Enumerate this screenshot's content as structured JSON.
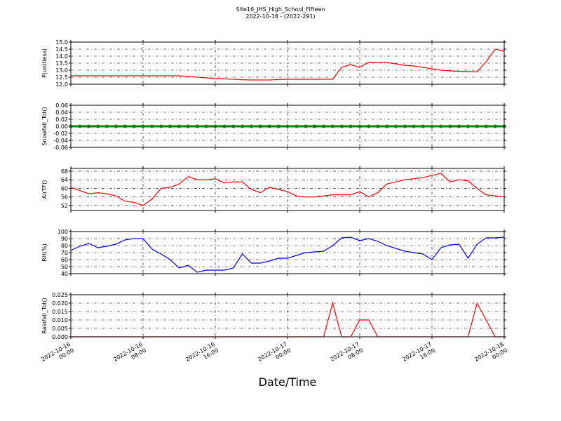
{
  "chart_data": [
    {
      "type": "line",
      "title": "Site16_JHS_High_School_Fifteen",
      "subtitle": "2022-10-18 - (2022-291)",
      "ylabel": "P(unitless)",
      "color": "#ff0000",
      "x": [
        "2022-10-16 00:00",
        "2022-10-16 01:00",
        "2022-10-16 02:00",
        "2022-10-16 03:00",
        "2022-10-16 04:00",
        "2022-10-16 05:00",
        "2022-10-16 06:00",
        "2022-10-16 07:00",
        "2022-10-16 08:00",
        "2022-10-16 09:00",
        "2022-10-16 10:00",
        "2022-10-16 11:00",
        "2022-10-16 12:00",
        "2022-10-16 13:00",
        "2022-10-16 14:00",
        "2022-10-16 15:00",
        "2022-10-16 16:00",
        "2022-10-16 17:00",
        "2022-10-16 18:00",
        "2022-10-16 19:00",
        "2022-10-16 20:00",
        "2022-10-16 21:00",
        "2022-10-16 22:00",
        "2022-10-16 23:00",
        "2022-10-17 00:00",
        "2022-10-17 01:00",
        "2022-10-17 02:00",
        "2022-10-17 03:00",
        "2022-10-17 04:00",
        "2022-10-17 05:00",
        "2022-10-17 06:00",
        "2022-10-17 07:00",
        "2022-10-17 08:00",
        "2022-10-17 09:00",
        "2022-10-17 10:00",
        "2022-10-17 11:00",
        "2022-10-17 12:00",
        "2022-10-17 13:00",
        "2022-10-17 14:00",
        "2022-10-17 15:00",
        "2022-10-17 16:00",
        "2022-10-17 17:00",
        "2022-10-17 18:00",
        "2022-10-17 19:00",
        "2022-10-17 20:00",
        "2022-10-17 21:00",
        "2022-10-17 22:00",
        "2022-10-17 23:00",
        "2022-10-18 00:00"
      ],
      "values": [
        12.6,
        12.6,
        12.6,
        12.6,
        12.6,
        12.6,
        12.6,
        12.6,
        12.6,
        12.6,
        12.6,
        12.6,
        12.6,
        12.55,
        12.5,
        12.45,
        12.4,
        12.38,
        12.35,
        12.32,
        12.3,
        12.3,
        12.3,
        12.33,
        12.35,
        12.35,
        12.35,
        12.35,
        12.35,
        12.35,
        13.2,
        13.4,
        13.2,
        13.55,
        13.55,
        13.55,
        13.45,
        13.35,
        13.3,
        13.2,
        13.1,
        13.0,
        12.95,
        12.92,
        12.9,
        12.88,
        13.6,
        14.5,
        14.35
      ],
      "xlim": [
        "2022-10-16 00:00",
        "2022-10-18 00:00"
      ],
      "xticks": [
        "2022-10-16 00:00",
        "2022-10-16 08:00",
        "2022-10-16 16:00",
        "2022-10-17 00:00",
        "2022-10-17 08:00",
        "2022-10-17 16:00",
        "2022-10-18 00:00"
      ],
      "ylim": [
        12.0,
        15.0
      ],
      "yticks": [
        {
          "value": 12,
          "label": "12.0"
        },
        12.5,
        {
          "value": 13,
          "label": "13.0"
        },
        13.5,
        {
          "value": 14,
          "label": "14.0"
        },
        14.5,
        {
          "value": 15,
          "label": "15.0"
        }
      ],
      "grid": true
    },
    {
      "type": "line",
      "ylabel": "Snowfall_Tot()",
      "color": "#008000",
      "marker": true,
      "x": [
        "2022-10-16 00:00",
        "2022-10-16 01:00",
        "2022-10-16 02:00",
        "2022-10-16 03:00",
        "2022-10-16 04:00",
        "2022-10-16 05:00",
        "2022-10-16 06:00",
        "2022-10-16 07:00",
        "2022-10-16 08:00",
        "2022-10-16 09:00",
        "2022-10-16 10:00",
        "2022-10-16 11:00",
        "2022-10-16 12:00",
        "2022-10-16 13:00",
        "2022-10-16 14:00",
        "2022-10-16 15:00",
        "2022-10-16 16:00",
        "2022-10-16 17:00",
        "2022-10-16 18:00",
        "2022-10-16 19:00",
        "2022-10-16 20:00",
        "2022-10-16 21:00",
        "2022-10-16 22:00",
        "2022-10-16 23:00",
        "2022-10-17 00:00",
        "2022-10-17 01:00",
        "2022-10-17 02:00",
        "2022-10-17 03:00",
        "2022-10-17 04:00",
        "2022-10-17 05:00",
        "2022-10-17 06:00",
        "2022-10-17 07:00",
        "2022-10-17 08:00",
        "2022-10-17 09:00",
        "2022-10-17 10:00",
        "2022-10-17 11:00",
        "2022-10-17 12:00",
        "2022-10-17 13:00",
        "2022-10-17 14:00",
        "2022-10-17 15:00",
        "2022-10-17 16:00",
        "2022-10-17 17:00",
        "2022-10-17 18:00",
        "2022-10-17 19:00",
        "2022-10-17 20:00",
        "2022-10-17 21:00",
        "2022-10-17 22:00",
        "2022-10-17 23:00",
        "2022-10-18 00:00"
      ],
      "values": [
        0,
        0,
        0,
        0,
        0,
        0,
        0,
        0,
        0,
        0,
        0,
        0,
        0,
        0,
        0,
        0,
        0,
        0,
        0,
        0,
        0,
        0,
        0,
        0,
        0,
        0,
        0,
        0,
        0,
        0,
        0,
        0,
        0,
        0,
        0,
        0,
        0,
        0,
        0,
        0,
        0,
        0,
        0,
        0,
        0,
        0,
        0,
        0,
        0
      ],
      "xlim": [
        "2022-10-16 00:00",
        "2022-10-18 00:00"
      ],
      "xticks": [
        "2022-10-16 00:00",
        "2022-10-16 08:00",
        "2022-10-16 16:00",
        "2022-10-17 00:00",
        "2022-10-17 08:00",
        "2022-10-17 16:00",
        "2022-10-18 00:00"
      ],
      "ylim": [
        -0.06,
        0.06
      ],
      "yticks": [
        {
          "value": -0.06,
          "label": "-0.06"
        },
        {
          "value": -0.04,
          "label": "-0.04"
        },
        {
          "value": -0.02,
          "label": "-0.02"
        },
        {
          "value": 0,
          "label": "0.00"
        },
        {
          "value": 0.02,
          "label": "0.02"
        },
        {
          "value": 0.04,
          "label": "0.04"
        },
        {
          "value": 0.06,
          "label": "0.06"
        }
      ],
      "grid": true
    },
    {
      "type": "line",
      "ylabel": "AirTF()",
      "color": "#ff0000",
      "x": [
        "2022-10-16 00:00",
        "2022-10-16 01:00",
        "2022-10-16 02:00",
        "2022-10-16 03:00",
        "2022-10-16 04:00",
        "2022-10-16 05:00",
        "2022-10-16 06:00",
        "2022-10-16 07:00",
        "2022-10-16 08:00",
        "2022-10-16 09:00",
        "2022-10-16 10:00",
        "2022-10-16 11:00",
        "2022-10-16 12:00",
        "2022-10-16 13:00",
        "2022-10-16 14:00",
        "2022-10-16 15:00",
        "2022-10-16 16:00",
        "2022-10-16 17:00",
        "2022-10-16 18:00",
        "2022-10-16 19:00",
        "2022-10-16 20:00",
        "2022-10-16 21:00",
        "2022-10-16 22:00",
        "2022-10-16 23:00",
        "2022-10-17 00:00",
        "2022-10-17 01:00",
        "2022-10-17 02:00",
        "2022-10-17 03:00",
        "2022-10-17 04:00",
        "2022-10-17 05:00",
        "2022-10-17 06:00",
        "2022-10-17 07:00",
        "2022-10-17 08:00",
        "2022-10-17 09:00",
        "2022-10-17 10:00",
        "2022-10-17 11:00",
        "2022-10-17 12:00",
        "2022-10-17 13:00",
        "2022-10-17 14:00",
        "2022-10-17 15:00",
        "2022-10-17 16:00",
        "2022-10-17 17:00",
        "2022-10-17 18:00",
        "2022-10-17 19:00",
        "2022-10-17 20:00",
        "2022-10-17 21:00",
        "2022-10-17 22:00",
        "2022-10-17 23:00",
        "2022-10-18 00:00"
      ],
      "values": [
        60.5,
        59,
        57.5,
        58,
        57.5,
        56.5,
        54,
        53.5,
        52,
        55,
        60,
        60.5,
        62,
        65.5,
        64,
        64,
        64.5,
        62.5,
        63,
        63,
        59.5,
        58,
        60.5,
        59.5,
        58.5,
        56.5,
        56,
        56,
        56.5,
        57,
        57,
        57,
        58.5,
        56,
        58,
        62,
        63,
        64,
        64.5,
        65,
        66,
        67,
        63,
        64,
        63.5,
        60,
        57,
        56.5,
        56
      ],
      "xlim": [
        "2022-10-16 00:00",
        "2022-10-18 00:00"
      ],
      "xticks": [
        "2022-10-16 00:00",
        "2022-10-16 08:00",
        "2022-10-16 16:00",
        "2022-10-17 00:00",
        "2022-10-17 08:00",
        "2022-10-17 16:00",
        "2022-10-18 00:00"
      ],
      "ylim": [
        49.7,
        69.3
      ],
      "yticks": [
        52,
        56,
        60,
        64,
        68
      ],
      "grid": true
    },
    {
      "type": "line",
      "ylabel": "RH(%)",
      "color": "#0000ff",
      "x": [
        "2022-10-16 00:00",
        "2022-10-16 01:00",
        "2022-10-16 02:00",
        "2022-10-16 03:00",
        "2022-10-16 04:00",
        "2022-10-16 05:00",
        "2022-10-16 06:00",
        "2022-10-16 07:00",
        "2022-10-16 08:00",
        "2022-10-16 09:00",
        "2022-10-16 10:00",
        "2022-10-16 11:00",
        "2022-10-16 12:00",
        "2022-10-16 13:00",
        "2022-10-16 14:00",
        "2022-10-16 15:00",
        "2022-10-16 16:00",
        "2022-10-16 17:00",
        "2022-10-16 18:00",
        "2022-10-16 19:00",
        "2022-10-16 20:00",
        "2022-10-16 21:00",
        "2022-10-16 22:00",
        "2022-10-16 23:00",
        "2022-10-17 00:00",
        "2022-10-17 01:00",
        "2022-10-17 02:00",
        "2022-10-17 03:00",
        "2022-10-17 04:00",
        "2022-10-17 05:00",
        "2022-10-17 06:00",
        "2022-10-17 07:00",
        "2022-10-17 08:00",
        "2022-10-17 09:00",
        "2022-10-17 10:00",
        "2022-10-17 11:00",
        "2022-10-17 12:00",
        "2022-10-17 13:00",
        "2022-10-17 14:00",
        "2022-10-17 15:00",
        "2022-10-17 16:00",
        "2022-10-17 17:00",
        "2022-10-17 18:00",
        "2022-10-17 19:00",
        "2022-10-17 20:00",
        "2022-10-17 21:00",
        "2022-10-17 22:00",
        "2022-10-17 23:00",
        "2022-10-18 00:00"
      ],
      "values": [
        73,
        79,
        83,
        77,
        79,
        82,
        88,
        90,
        90,
        75,
        68,
        60,
        48,
        52,
        42,
        45,
        45,
        45,
        48,
        68,
        55,
        55,
        58,
        62,
        62,
        66,
        70,
        71,
        72,
        80,
        91,
        92,
        87,
        90,
        86,
        80,
        76,
        72,
        70,
        68,
        60,
        77,
        81,
        82,
        62,
        82,
        91,
        91,
        92
      ],
      "xlim": [
        "2022-10-16 00:00",
        "2022-10-18 00:00"
      ],
      "xticks": [
        "2022-10-16 00:00",
        "2022-10-16 08:00",
        "2022-10-16 16:00",
        "2022-10-17 00:00",
        "2022-10-17 08:00",
        "2022-10-17 16:00",
        "2022-10-18 00:00"
      ],
      "ylim": [
        40,
        100
      ],
      "yticks": [
        40,
        50,
        60,
        70,
        80,
        90,
        100
      ],
      "grid": true
    },
    {
      "type": "line",
      "ylabel": "Rainfall_Tot()",
      "xlabel": "Date/Time",
      "color": "#ff0000",
      "x": [
        "2022-10-16 00:00",
        "2022-10-16 01:00",
        "2022-10-16 02:00",
        "2022-10-16 03:00",
        "2022-10-16 04:00",
        "2022-10-16 05:00",
        "2022-10-16 06:00",
        "2022-10-16 07:00",
        "2022-10-16 08:00",
        "2022-10-16 09:00",
        "2022-10-16 10:00",
        "2022-10-16 11:00",
        "2022-10-16 12:00",
        "2022-10-16 13:00",
        "2022-10-16 14:00",
        "2022-10-16 15:00",
        "2022-10-16 16:00",
        "2022-10-16 17:00",
        "2022-10-16 18:00",
        "2022-10-16 19:00",
        "2022-10-16 20:00",
        "2022-10-16 21:00",
        "2022-10-16 22:00",
        "2022-10-16 23:00",
        "2022-10-17 00:00",
        "2022-10-17 01:00",
        "2022-10-17 02:00",
        "2022-10-17 03:00",
        "2022-10-17 04:00",
        "2022-10-17 05:00",
        "2022-10-17 06:00",
        "2022-10-17 07:00",
        "2022-10-17 08:00",
        "2022-10-17 09:00",
        "2022-10-17 10:00",
        "2022-10-17 11:00",
        "2022-10-17 12:00",
        "2022-10-17 13:00",
        "2022-10-17 14:00",
        "2022-10-17 15:00",
        "2022-10-17 16:00",
        "2022-10-17 17:00",
        "2022-10-17 18:00",
        "2022-10-17 19:00",
        "2022-10-17 20:00",
        "2022-10-17 21:00",
        "2022-10-17 22:00",
        "2022-10-17 23:00",
        "2022-10-18 00:00"
      ],
      "values": [
        0,
        0,
        0,
        0,
        0,
        0,
        0,
        0,
        0,
        0,
        0,
        0,
        0,
        0,
        0,
        0,
        0,
        0,
        0,
        0,
        0,
        0,
        0,
        0,
        0,
        0,
        0,
        0,
        0,
        0.02,
        0,
        0,
        0.01,
        0.01,
        0,
        0,
        0,
        0,
        0,
        0,
        0,
        0,
        0,
        0,
        0,
        0.02,
        0.01,
        0,
        0
      ],
      "xlim": [
        "2022-10-16 00:00",
        "2022-10-18 00:00"
      ],
      "xticks": [
        {
          "value": "2022-10-16 00:00",
          "label": "2022-10-16\n00:00"
        },
        {
          "value": "2022-10-16 08:00",
          "label": "2022-10-16\n08:00"
        },
        {
          "value": "2022-10-16 16:00",
          "label": "2022-10-16\n16:00"
        },
        {
          "value": "2022-10-17 00:00",
          "label": "2022-10-17\n00:00"
        },
        {
          "value": "2022-10-17 08:00",
          "label": "2022-10-17\n08:00"
        },
        {
          "value": "2022-10-17 16:00",
          "label": "2022-10-17\n16:00"
        },
        {
          "value": "2022-10-18 00:00",
          "label": "2022-10-18\n00:00"
        }
      ],
      "ylim": [
        0,
        0.025
      ],
      "yticks": [
        {
          "value": 0,
          "label": "0.000"
        },
        {
          "value": 0.005,
          "label": "0.005"
        },
        {
          "value": 0.01,
          "label": "0.010"
        },
        {
          "value": 0.015,
          "label": "0.015"
        },
        {
          "value": 0.02,
          "label": "0.020"
        },
        {
          "value": 0.025,
          "label": "0.025"
        }
      ],
      "grid": true
    }
  ]
}
